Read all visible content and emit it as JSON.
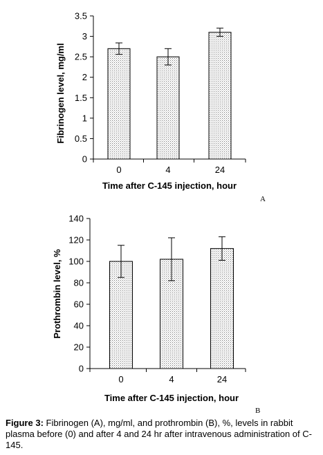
{
  "chart_data": [
    {
      "type": "bar",
      "panel": "A",
      "categories": [
        "0",
        "4",
        "24"
      ],
      "values": [
        2.7,
        2.5,
        3.1
      ],
      "errors": [
        0.14,
        0.2,
        0.1
      ],
      "ylabel": "Fibrinogen level, mg/ml",
      "xlabel": "Time after C-145 injection, hour",
      "ylim": [
        0,
        3.5
      ],
      "yticks": [
        "0",
        "0.5",
        "1",
        "1.5",
        "2",
        "2.5",
        "3",
        "3.5"
      ],
      "fill": "dotted",
      "grid": false
    },
    {
      "type": "bar",
      "panel": "B",
      "categories": [
        "0",
        "4",
        "24"
      ],
      "values": [
        100,
        102,
        112
      ],
      "errors": [
        15,
        20,
        11
      ],
      "ylabel": "Prothrombin level, %",
      "xlabel": "Time after C-145 injection, hour",
      "ylim": [
        0,
        140
      ],
      "yticks": [
        "0",
        "20",
        "40",
        "60",
        "80",
        "100",
        "120",
        "140"
      ],
      "fill": "dotted",
      "grid": false
    }
  ],
  "caption": {
    "label": "Figure 3:",
    "text": "Fibrinogen (A), mg/ml, and prothrombin (B), %, levels in rabbit plasma before (0) and after 4 and 24 hr after intravenous administration of C-145."
  }
}
